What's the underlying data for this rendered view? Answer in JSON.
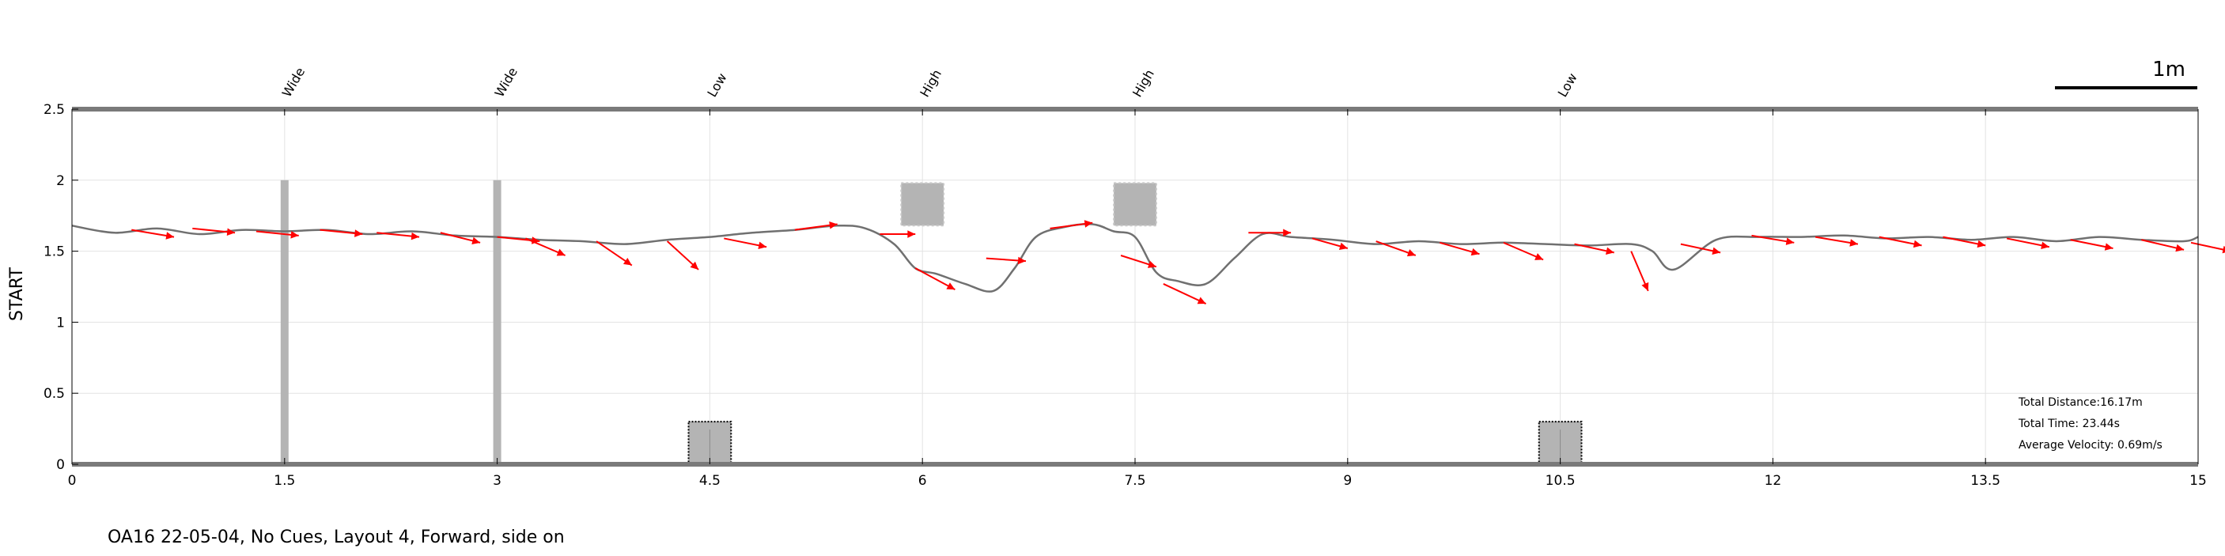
{
  "chart_data": {
    "type": "line",
    "ylabel": "START",
    "xlim": [
      0,
      15
    ],
    "ylim": [
      0,
      2.5
    ],
    "xticks": [
      0,
      1.5,
      3,
      4.5,
      6,
      7.5,
      9,
      10.5,
      12,
      13.5,
      15
    ],
    "xtick_labels": [
      "0",
      "1.5",
      "3",
      "4.5",
      "6",
      "7.5",
      "9",
      "10.5",
      "12",
      "13.5",
      "15"
    ],
    "yticks": [
      0,
      0.5,
      1,
      1.5,
      2,
      2.5
    ],
    "ytick_labels": [
      "0",
      "0.5",
      "1",
      "1.5",
      "2",
      "2.5"
    ],
    "grid": true,
    "scale_bar_label": "1m",
    "obstacles": [
      {
        "x": 1.5,
        "label": "Wide",
        "kind": "wide",
        "ybottom": 0,
        "ytop": 2.0
      },
      {
        "x": 3.0,
        "label": "Wide",
        "kind": "wide",
        "ybottom": 0,
        "ytop": 2.0
      },
      {
        "x": 4.5,
        "label": "Low",
        "kind": "low",
        "ybottom": 0,
        "ytop": 0.3
      },
      {
        "x": 6.0,
        "label": "High",
        "kind": "high",
        "ybottom": 1.68,
        "ytop": 1.98
      },
      {
        "x": 7.5,
        "label": "High",
        "kind": "high",
        "ybottom": 1.68,
        "ytop": 1.98
      },
      {
        "x": 10.5,
        "label": "Low",
        "kind": "low",
        "ybottom": 0,
        "ytop": 0.3
      }
    ],
    "path": {
      "x": [
        0,
        0.3,
        0.6,
        0.9,
        1.2,
        1.5,
        1.8,
        2.1,
        2.4,
        2.7,
        3.0,
        3.3,
        3.6,
        3.9,
        4.2,
        4.5,
        4.8,
        5.1,
        5.4,
        5.6,
        5.8,
        5.95,
        6.1,
        6.3,
        6.5,
        6.65,
        6.8,
        7.0,
        7.2,
        7.35,
        7.5,
        7.65,
        7.8,
        8.0,
        8.2,
        8.4,
        8.6,
        8.9,
        9.2,
        9.5,
        9.8,
        10.1,
        10.4,
        10.7,
        11.0,
        11.15,
        11.3,
        11.6,
        11.9,
        12.2,
        12.5,
        12.8,
        13.1,
        13.4,
        13.7,
        14.0,
        14.3,
        14.6,
        14.9,
        15.0
      ],
      "y": [
        1.68,
        1.63,
        1.66,
        1.62,
        1.65,
        1.64,
        1.65,
        1.62,
        1.64,
        1.61,
        1.6,
        1.58,
        1.57,
        1.55,
        1.58,
        1.6,
        1.63,
        1.65,
        1.68,
        1.66,
        1.55,
        1.38,
        1.34,
        1.27,
        1.22,
        1.38,
        1.6,
        1.67,
        1.69,
        1.64,
        1.6,
        1.35,
        1.29,
        1.27,
        1.45,
        1.62,
        1.6,
        1.58,
        1.55,
        1.57,
        1.55,
        1.56,
        1.55,
        1.54,
        1.55,
        1.5,
        1.37,
        1.58,
        1.6,
        1.6,
        1.61,
        1.59,
        1.6,
        1.58,
        1.6,
        1.57,
        1.6,
        1.58,
        1.57,
        1.6
      ]
    },
    "velocity_vectors": [
      {
        "x": 0.42,
        "y": 1.65,
        "dx": 0.3,
        "dy": -0.05
      },
      {
        "x": 0.85,
        "y": 1.66,
        "dx": 0.3,
        "dy": -0.03
      },
      {
        "x": 1.3,
        "y": 1.64,
        "dx": 0.3,
        "dy": -0.03
      },
      {
        "x": 1.75,
        "y": 1.65,
        "dx": 0.3,
        "dy": -0.03
      },
      {
        "x": 2.15,
        "y": 1.63,
        "dx": 0.3,
        "dy": -0.03
      },
      {
        "x": 2.6,
        "y": 1.63,
        "dx": 0.28,
        "dy": -0.07
      },
      {
        "x": 3.0,
        "y": 1.6,
        "dx": 0.3,
        "dy": -0.03
      },
      {
        "x": 3.2,
        "y": 1.59,
        "dx": 0.28,
        "dy": -0.12
      },
      {
        "x": 3.7,
        "y": 1.57,
        "dx": 0.25,
        "dy": -0.17
      },
      {
        "x": 4.2,
        "y": 1.57,
        "dx": 0.22,
        "dy": -0.2
      },
      {
        "x": 4.6,
        "y": 1.59,
        "dx": 0.3,
        "dy": -0.06
      },
      {
        "x": 5.1,
        "y": 1.65,
        "dx": 0.3,
        "dy": 0.04
      },
      {
        "x": 5.7,
        "y": 1.62,
        "dx": 0.25,
        "dy": 0.0
      },
      {
        "x": 5.95,
        "y": 1.38,
        "dx": 0.28,
        "dy": -0.15
      },
      {
        "x": 6.45,
        "y": 1.45,
        "dx": 0.28,
        "dy": -0.02
      },
      {
        "x": 6.9,
        "y": 1.66,
        "dx": 0.3,
        "dy": 0.04
      },
      {
        "x": 7.4,
        "y": 1.47,
        "dx": 0.25,
        "dy": -0.08
      },
      {
        "x": 7.7,
        "y": 1.27,
        "dx": 0.3,
        "dy": -0.14
      },
      {
        "x": 8.3,
        "y": 1.63,
        "dx": 0.3,
        "dy": 0.0
      },
      {
        "x": 8.75,
        "y": 1.59,
        "dx": 0.25,
        "dy": -0.07
      },
      {
        "x": 9.2,
        "y": 1.57,
        "dx": 0.28,
        "dy": -0.1
      },
      {
        "x": 9.65,
        "y": 1.56,
        "dx": 0.28,
        "dy": -0.08
      },
      {
        "x": 10.1,
        "y": 1.56,
        "dx": 0.28,
        "dy": -0.12
      },
      {
        "x": 10.6,
        "y": 1.55,
        "dx": 0.28,
        "dy": -0.06
      },
      {
        "x": 11.0,
        "y": 1.5,
        "dx": 0.12,
        "dy": -0.28
      },
      {
        "x": 11.35,
        "y": 1.55,
        "dx": 0.28,
        "dy": -0.06
      },
      {
        "x": 11.85,
        "y": 1.61,
        "dx": 0.3,
        "dy": -0.05
      },
      {
        "x": 12.3,
        "y": 1.6,
        "dx": 0.3,
        "dy": -0.05
      },
      {
        "x": 12.75,
        "y": 1.6,
        "dx": 0.3,
        "dy": -0.06
      },
      {
        "x": 13.2,
        "y": 1.6,
        "dx": 0.3,
        "dy": -0.06
      },
      {
        "x": 13.65,
        "y": 1.59,
        "dx": 0.3,
        "dy": -0.06
      },
      {
        "x": 14.1,
        "y": 1.58,
        "dx": 0.3,
        "dy": -0.06
      },
      {
        "x": 14.6,
        "y": 1.58,
        "dx": 0.3,
        "dy": -0.07
      },
      {
        "x": 14.95,
        "y": 1.56,
        "dx": 0.28,
        "dy": -0.06
      }
    ],
    "stats": {
      "distance": "Total Distance:16.17m",
      "time": "Total Time: 23.44s",
      "velocity": "Average Velocity: 0.69m/s"
    },
    "caption": "OA16 22-05-04, No Cues, Layout 4, Forward, side on",
    "colors": {
      "path": "#707070",
      "vector": "#ff0000",
      "obstacle": "#b4b4b4",
      "rail": "#7a7a7a",
      "grid": "#e3e3e3"
    }
  }
}
